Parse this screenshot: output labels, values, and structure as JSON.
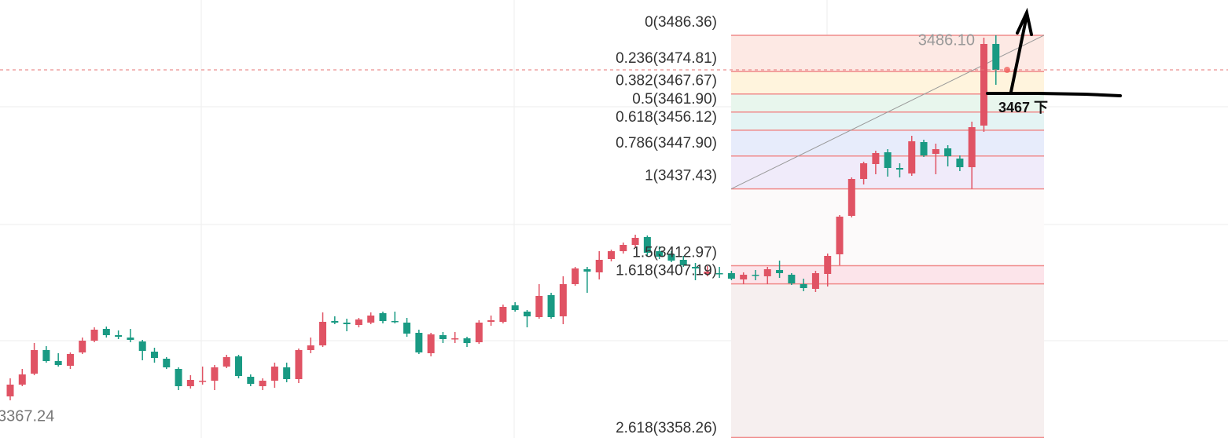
{
  "chart_data": {
    "type": "candlestick",
    "ylim": [
      3358.1,
      3497.6
    ],
    "up_color": "#e05364",
    "down_color": "#199a83",
    "series": {
      "open": [
        3371.35,
        3375.1,
        3378.6,
        3386.1,
        3382.6,
        3381.1,
        3385.35,
        3389.1,
        3392.85,
        3390.85,
        3390.1,
        3388.85,
        3385.6,
        3383.35,
        3380.1,
        3374.6,
        3376.1,
        3376.35,
        3380.85,
        3384.1,
        3377.6,
        3374.6,
        3376.35,
        3380.6,
        3376.85,
        3386.1,
        3387.6,
        3395.35,
        3394.85,
        3394.1,
        3394.85,
        3397.85,
        3395.35,
        3394.85,
        3391.6,
        3385.1,
        3390.85,
        3389.6,
        3389.85,
        3388.6,
        3395.1,
        3395.1,
        3400.35,
        3398.35,
        3396.6,
        3403.6,
        3396.85,
        3407.1,
        3411.85,
        3410.85,
        3415.1,
        3417.6,
        3419.6,
        3422.1,
        3417.6,
        3416.6,
        3414.85,
        3412.6,
        3410.35,
        3410.6,
        3410.6,
        3408.6,
        3410.1,
        3409.6,
        3411.6,
        3410.1,
        3407.1,
        3405.6,
        3410.35,
        3416.6,
        3428.85,
        3440.6,
        3445.35,
        3449.1,
        3444.1,
        3442.35,
        3452.35,
        3448.6,
        3450.35,
        3447.1,
        3444.35,
        3457.6,
        3483.6
      ],
      "high": [
        3377.1,
        3380.1,
        3388.35,
        3387.35,
        3385.1,
        3385.35,
        3390.1,
        3393.35,
        3393.6,
        3392.35,
        3392.85,
        3389.35,
        3386.85,
        3383.85,
        3380.6,
        3378.1,
        3380.85,
        3381.35,
        3384.6,
        3384.6,
        3378.35,
        3377.1,
        3382.1,
        3382.1,
        3386.6,
        3390.1,
        3398.1,
        3396.85,
        3396.1,
        3396.35,
        3398.1,
        3398.35,
        3398.35,
        3396.35,
        3392.6,
        3391.6,
        3391.85,
        3391.85,
        3390.35,
        3395.6,
        3397.1,
        3400.6,
        3401.35,
        3398.85,
        3407.1,
        3404.35,
        3409.6,
        3412.6,
        3412.6,
        3417.6,
        3418.1,
        3420.35,
        3422.85,
        3422.6,
        3419.1,
        3417.6,
        3416.1,
        3413.85,
        3412.85,
        3412.6,
        3411.35,
        3410.85,
        3411.6,
        3412.6,
        3414.6,
        3410.6,
        3408.85,
        3411.35,
        3416.85,
        3429.1,
        3441.1,
        3446.1,
        3449.6,
        3450.1,
        3445.6,
        3454.35,
        3453.1,
        3451.85,
        3451.35,
        3448.1,
        3458.85,
        3485.6,
        3486.36
      ],
      "low": [
        3370.1,
        3374.6,
        3378.1,
        3382.1,
        3380.85,
        3380.1,
        3384.85,
        3388.6,
        3390.1,
        3389.6,
        3388.6,
        3382.85,
        3382.1,
        3380.1,
        3373.35,
        3373.85,
        3375.1,
        3373.35,
        3380.35,
        3377.1,
        3374.6,
        3373.35,
        3374.1,
        3375.85,
        3375.6,
        3385.1,
        3387.1,
        3394.35,
        3392.1,
        3393.35,
        3394.35,
        3394.6,
        3394.6,
        3390.35,
        3384.85,
        3384.1,
        3388.35,
        3388.35,
        3387.1,
        3388.1,
        3393.85,
        3394.6,
        3398.35,
        3393.35,
        3396.1,
        3396.1,
        3394.35,
        3406.6,
        3404.35,
        3408.6,
        3414.35,
        3416.85,
        3418.85,
        3416.1,
        3415.1,
        3414.1,
        3412.6,
        3408.35,
        3409.6,
        3409.1,
        3408.35,
        3407.1,
        3408.35,
        3407.1,
        3409.1,
        3406.85,
        3404.85,
        3404.6,
        3406.35,
        3413.1,
        3428.35,
        3438.85,
        3442.1,
        3441.35,
        3441.1,
        3441.6,
        3447.6,
        3442.1,
        3444.6,
        3443.1,
        3437.43,
        3455.6,
        3470.6
      ],
      "close": [
        3375.1,
        3378.35,
        3386.1,
        3382.6,
        3381.35,
        3384.85,
        3389.1,
        3392.6,
        3390.85,
        3390.35,
        3389.35,
        3385.85,
        3383.6,
        3380.6,
        3374.6,
        3376.6,
        3376.35,
        3380.6,
        3383.85,
        3377.85,
        3375.35,
        3376.35,
        3380.85,
        3376.85,
        3386.1,
        3387.6,
        3395.1,
        3394.85,
        3394.35,
        3395.85,
        3397.1,
        3395.35,
        3395.1,
        3391.35,
        3385.35,
        3391.1,
        3389.6,
        3389.85,
        3388.35,
        3394.85,
        3395.6,
        3399.85,
        3398.85,
        3396.85,
        3403.35,
        3396.6,
        3407.1,
        3412.1,
        3411.1,
        3414.85,
        3417.6,
        3419.6,
        3421.85,
        3417.1,
        3415.85,
        3414.6,
        3413.1,
        3412.1,
        3411.1,
        3410.35,
        3408.85,
        3410.1,
        3409.85,
        3411.85,
        3410.6,
        3407.35,
        3405.85,
        3410.6,
        3416.1,
        3428.6,
        3440.6,
        3445.6,
        3448.85,
        3444.1,
        3443.6,
        3452.6,
        3448.1,
        3450.1,
        3447.85,
        3444.35,
        3457.1,
        3483.6,
        3475.35
      ]
    },
    "fib_line_color": "#f08a8a",
    "fib_levels": [
      {
        "label": "0(3486.36)",
        "value": 3486.36,
        "color": "#fde9e4"
      },
      {
        "label": "0.236(3474.81)",
        "value": 3474.81,
        "color": "#fff4dd"
      },
      {
        "label": "0.382(3467.67)",
        "value": 3467.67,
        "color": "#e8f6ed"
      },
      {
        "label": "0.5(3461.90)",
        "value": 3461.9,
        "color": "#e4f4f4"
      },
      {
        "label": "0.618(3456.12)",
        "value": 3456.12,
        "color": "#e7ecfb"
      },
      {
        "label": "0.786(3447.90)",
        "value": 3447.9,
        "color": "#f0ebfa"
      },
      {
        "label": "1(3437.43)",
        "value": 3437.43,
        "color": "#fcfafa"
      },
      {
        "label": "1.5(3412.97)",
        "value": 3412.97,
        "color": "#fce4ea"
      },
      {
        "label": "1.618(3407.19)",
        "value": 3407.19,
        "color": "#f6efef"
      },
      {
        "label": "2.618(3358.26)",
        "value": 3358.26,
        "color": "#f6efef"
      }
    ],
    "annotations": [
      {
        "text": "3486.10"
      },
      {
        "text": "3367.24"
      },
      {
        "text": "3467 下"
      }
    ]
  }
}
